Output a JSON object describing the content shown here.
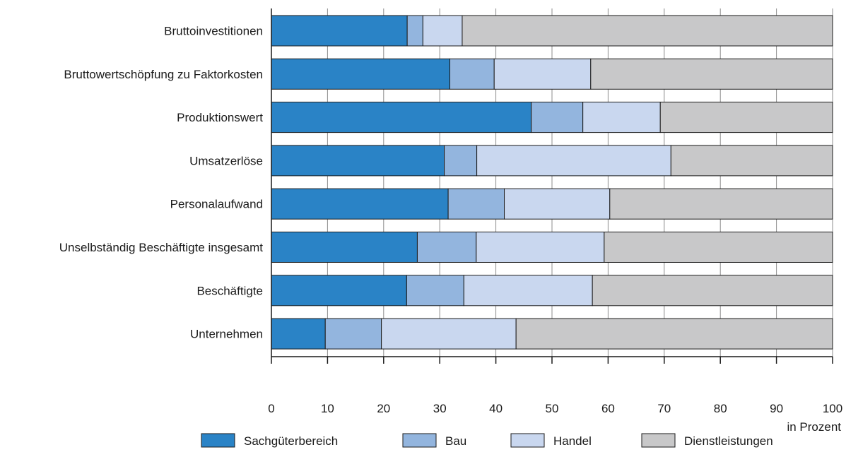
{
  "chart_data": {
    "type": "bar",
    "orientation": "horizontal",
    "stacked": true,
    "categories": [
      "Bruttoinvestitionen",
      "Bruttowertschöpfung zu Faktorkosten",
      "Produktionswert",
      "Umsatzerlöse",
      "Personalaufwand",
      "Unselbständig Beschäftigte insgesamt",
      "Beschäftigte",
      "Unternehmen"
    ],
    "series": [
      {
        "name": "Sachgüterbereich",
        "color": "#2a83c6",
        "values": [
          24.2,
          31.8,
          46.3,
          30.8,
          31.5,
          26.0,
          24.1,
          9.6
        ]
      },
      {
        "name": "Bau",
        "color": "#93b5de",
        "values": [
          2.8,
          7.9,
          9.2,
          5.8,
          10.0,
          10.5,
          10.2,
          10.0
        ]
      },
      {
        "name": "Handel",
        "color": "#c9d7ef",
        "values": [
          7.0,
          17.2,
          13.8,
          34.6,
          18.8,
          22.8,
          22.9,
          24.0
        ]
      },
      {
        "name": "Dienstleistungen",
        "color": "#c8c8c9",
        "values": [
          66.0,
          43.1,
          30.7,
          28.8,
          39.7,
          40.7,
          42.8,
          56.4
        ]
      }
    ],
    "xlim": [
      0,
      100
    ],
    "xticks": [
      0,
      10,
      20,
      30,
      40,
      50,
      60,
      70,
      80,
      90,
      100
    ],
    "xlabel": "in Prozent",
    "grid": "vertical",
    "legend_position": "bottom"
  }
}
